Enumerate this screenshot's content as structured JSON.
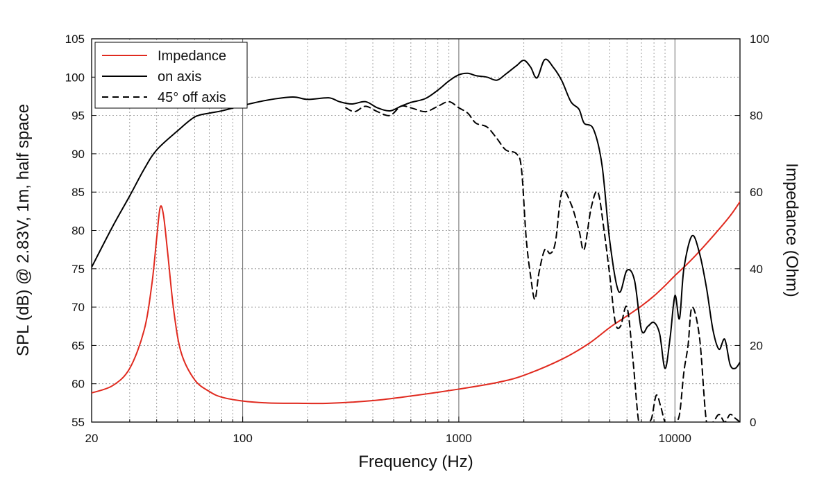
{
  "chart_data": {
    "type": "line",
    "xscale": "log",
    "xlim": [
      20,
      20000
    ],
    "xlabel": "Frequency (Hz)",
    "xticklabels": [
      {
        "value": 20,
        "label": "20"
      },
      {
        "value": 100,
        "label": "100"
      },
      {
        "value": 1000,
        "label": "1000"
      },
      {
        "value": 10000,
        "label": "10000"
      }
    ],
    "ylabel": "SPL (dB) @ 2.83V, 1m, half space",
    "ylim": [
      55,
      105
    ],
    "yticks": [
      55,
      60,
      65,
      70,
      75,
      80,
      85,
      90,
      95,
      100,
      105
    ],
    "y2label": "Impedance (Ohm)",
    "y2lim": [
      0,
      100
    ],
    "y2ticks": [
      0,
      20,
      40,
      60,
      80,
      100
    ],
    "grid": true,
    "legend_position": "top-left",
    "colors": {
      "impedance": "#e02a1f",
      "on_axis": "#000000",
      "off_axis": "#000000"
    },
    "series": [
      {
        "name": "Impedance",
        "key": "impedance",
        "axis": "right",
        "style": "solid",
        "x": [
          20,
          25,
          30,
          35,
          38,
          40,
          41.5,
          43,
          45,
          48,
          52,
          60,
          70,
          80,
          100,
          130,
          180,
          250,
          400,
          600,
          1000,
          1500,
          2000,
          3000,
          4000,
          5000,
          6000,
          7000,
          8000,
          9000,
          10000,
          12000,
          15000,
          18000,
          20000
        ],
        "values": [
          7.6,
          9.5,
          14.0,
          24.0,
          36.0,
          48.0,
          56.0,
          54.0,
          44.0,
          29.0,
          18.0,
          11.0,
          8.0,
          6.5,
          5.5,
          5.0,
          4.9,
          4.9,
          5.6,
          6.8,
          8.6,
          10.3,
          12.2,
          16.4,
          20.5,
          24.7,
          27.7,
          30.3,
          32.9,
          35.6,
          38.2,
          42.5,
          48.5,
          53.8,
          57.5
        ]
      },
      {
        "name": "on axis",
        "key": "on_axis",
        "axis": "left",
        "style": "solid",
        "x": [
          20,
          25,
          30,
          35,
          40,
          50,
          60,
          70,
          80,
          100,
          130,
          170,
          200,
          250,
          280,
          320,
          370,
          420,
          480,
          540,
          600,
          700,
          800,
          900,
          1000,
          1100,
          1200,
          1350,
          1500,
          1650,
          1850,
          2000,
          2150,
          2300,
          2500,
          2750,
          3000,
          3300,
          3600,
          3800,
          4200,
          4600,
          5000,
          5500,
          6000,
          6500,
          7000,
          7500,
          8000,
          8500,
          9000,
          9500,
          10000,
          10500,
          11000,
          12000,
          13000,
          14000,
          15000,
          16000,
          17000,
          18000,
          19000,
          20000
        ],
        "values": [
          75.2,
          80.5,
          84.5,
          88.0,
          90.5,
          93.0,
          94.8,
          95.3,
          95.6,
          96.3,
          97.0,
          97.4,
          97.1,
          97.3,
          96.8,
          96.5,
          96.8,
          96.0,
          95.6,
          96.2,
          96.7,
          97.2,
          98.3,
          99.5,
          100.3,
          100.5,
          100.2,
          100.0,
          99.6,
          100.4,
          101.5,
          102.2,
          101.3,
          99.9,
          102.3,
          101.2,
          99.5,
          96.8,
          95.8,
          94.0,
          93.2,
          88.5,
          78.5,
          72.0,
          74.8,
          73.5,
          67.0,
          67.5,
          68.0,
          66.5,
          62.0,
          66.0,
          71.5,
          68.5,
          75.0,
          79.3,
          77.0,
          72.5,
          67.0,
          64.5,
          65.8,
          62.5,
          62.0,
          62.8
        ]
      },
      {
        "name": "45° off axis",
        "key": "off_axis",
        "axis": "left",
        "style": "dashed",
        "x": [
          300,
          330,
          370,
          420,
          480,
          540,
          600,
          700,
          800,
          900,
          1000,
          1100,
          1200,
          1350,
          1500,
          1650,
          1850,
          1950,
          2050,
          2150,
          2250,
          2350,
          2500,
          2650,
          2800,
          3000,
          3300,
          3600,
          3800,
          4100,
          4400,
          4700,
          5000,
          5300,
          5600,
          6000,
          6400,
          6800,
          7200,
          7500,
          7800,
          8200,
          8600,
          9000,
          9500,
          10000,
          10500,
          11000,
          11500,
          12000,
          13000,
          14000,
          15000,
          16000,
          17000,
          18000,
          19000,
          20000
        ],
        "values": [
          96.0,
          95.5,
          96.2,
          95.5,
          95.0,
          96.2,
          96.0,
          95.5,
          96.2,
          96.8,
          96.0,
          95.3,
          94.0,
          93.5,
          92.0,
          90.5,
          90.0,
          88.0,
          79.0,
          74.0,
          71.0,
          74.5,
          77.5,
          77.0,
          78.5,
          85.0,
          83.5,
          80.0,
          77.5,
          83.0,
          85.0,
          80.0,
          74.0,
          68.0,
          67.5,
          70.0,
          63.0,
          55.0,
          54.0,
          55.0,
          55.5,
          58.5,
          57.0,
          55.0,
          54.5,
          55.0,
          56.0,
          61.5,
          65.0,
          70.0,
          66.0,
          55.0,
          55.0,
          56.0,
          55.0,
          56.0,
          55.5,
          55.0
        ]
      }
    ]
  }
}
